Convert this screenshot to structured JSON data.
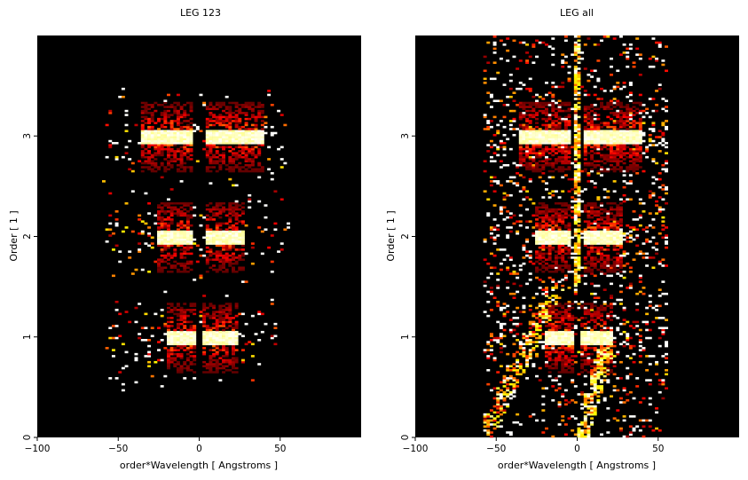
{
  "chart_data": [
    {
      "type": "heatmap",
      "title": "LEG 123",
      "xlabel": "order*Wavelength [ Angstroms ]",
      "ylabel": "Order [ 1 ]",
      "xlim": [
        -100,
        100
      ],
      "ylim": [
        0,
        4
      ],
      "xticks": [
        "−100",
        "−50",
        "0",
        "50"
      ],
      "xtick_values": [
        -100,
        -50,
        0,
        50
      ],
      "yticks": [
        "0",
        "1",
        "2",
        "3"
      ],
      "ytick_values": [
        0,
        1,
        2,
        3
      ],
      "colormap": "hot",
      "background": "#000000",
      "bands": [
        {
          "order": 1,
          "core_lo": -20,
          "core_hi": 24,
          "extent_lo": -58,
          "extent_hi": 48,
          "gap_lo": -2,
          "gap_hi": 2
        },
        {
          "order": 2,
          "core_lo": -26,
          "core_hi": 28,
          "extent_lo": -58,
          "extent_hi": 55,
          "gap_lo": -3,
          "gap_hi": 3
        },
        {
          "order": 3,
          "core_lo": -36,
          "core_hi": 40,
          "extent_lo": -60,
          "extent_hi": 55,
          "gap_lo": -3,
          "gap_hi": 3
        }
      ]
    },
    {
      "type": "heatmap",
      "title": "LEG all",
      "xlabel": "order*Wavelength [ Angstroms ]",
      "ylabel": "Order [ 1 ]",
      "xlim": [
        -100,
        100
      ],
      "ylim": [
        0,
        4
      ],
      "xticks": [
        "−100",
        "−50",
        "0",
        "50"
      ],
      "xtick_values": [
        -100,
        -50,
        0,
        50
      ],
      "yticks": [
        "0",
        "1",
        "2",
        "3"
      ],
      "ytick_values": [
        0,
        1,
        2,
        3
      ],
      "colormap": "hot",
      "background": "#000000",
      "data_extent_x": [
        -58,
        56
      ],
      "bands": [
        {
          "order": 1,
          "core_lo": -20,
          "core_hi": 22,
          "extent_lo": -58,
          "extent_hi": 56,
          "gap_lo": -2,
          "gap_hi": 2
        },
        {
          "order": 2,
          "core_lo": -26,
          "core_hi": 28,
          "extent_lo": -58,
          "extent_hi": 56,
          "gap_lo": -3,
          "gap_hi": 3
        },
        {
          "order": 3,
          "core_lo": -36,
          "core_hi": 40,
          "extent_lo": -58,
          "extent_hi": 56,
          "gap_lo": -3,
          "gap_hi": 3
        }
      ]
    }
  ]
}
